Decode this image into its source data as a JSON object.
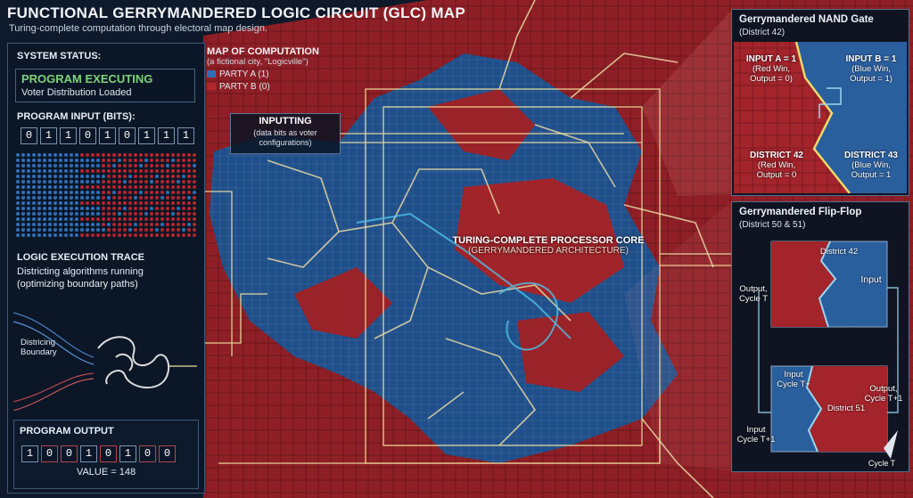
{
  "title": "FUNCTIONAL GERRYMANDERED LOGIC CIRCUIT (GLC) MAP",
  "subtitle": "Turing-complete computation through electoral map design.",
  "colors": {
    "party_a": "#2f6fb7",
    "party_b": "#b3262c",
    "trace": "#f2e3a0",
    "panel_border": "#3e5877"
  },
  "system_status": {
    "title": "SYSTEM STATUS:",
    "state": "PROGRAM EXECUTING",
    "detail": "Voter Distribution Loaded"
  },
  "program_input": {
    "title": "PROGRAM INPUT (BITS):",
    "bits": [
      "0",
      "1",
      "1",
      "0",
      "1",
      "0",
      "1",
      "1",
      "1"
    ]
  },
  "logic_trace": {
    "title": "LOGIC EXECUTION TRACE",
    "line1": "Districting algorithms running",
    "line2": "(optimizing boundary paths)",
    "diagram_label_1": "Districing",
    "diagram_label_2": "Boundary"
  },
  "program_output": {
    "title": "PROGRAM OUTPUT",
    "bits": [
      "1",
      "0",
      "0",
      "1",
      "0",
      "1",
      "0",
      "0"
    ],
    "value": "VALUE = 148"
  },
  "legend": {
    "title": "MAP OF COMPUTATION",
    "subtitle": "(a fictional city, \"Logicville\")",
    "party_a": "PARTY A (1)",
    "party_b": "PARTY B (0)"
  },
  "inputting": {
    "title": "INPUTTING",
    "line1": "(data bits as voter",
    "line2": "configurations)"
  },
  "core": {
    "title": "TURING-COMPLETE PROCESSOR CORE",
    "subtitle": "(GERRYMANDERED ARCHITECTURE)"
  },
  "nand": {
    "title": "Gerrymandered NAND Gate",
    "subtitle": "(District 42)",
    "input_a": [
      "INPUT A = 1",
      "(Red Win,",
      "Output = 0)"
    ],
    "input_b": [
      "INPUT B = 1",
      "(Blue Win,",
      "Output = 1)"
    ],
    "district_42": [
      "DISTRICT 42",
      "(Red Win,",
      "Output = 0"
    ],
    "district_43": [
      "DISTRICT 43",
      "(Blue Win,",
      "Output = 1"
    ]
  },
  "flipflop": {
    "title": "Gerrymandered Flip-Flop",
    "subtitle": "(District 50 & 51)",
    "output_cycle": [
      "Output,",
      "Cycle T"
    ],
    "district_42": "District 42",
    "input": "Input",
    "input_t": [
      "Input",
      "Cycle T+"
    ],
    "output_t1": [
      "Output,",
      "Cycle T+1"
    ],
    "district_51": "District 51",
    "input_t1": [
      "Input",
      "Cycle T+1"
    ],
    "cycle_t": "Cycle T"
  }
}
